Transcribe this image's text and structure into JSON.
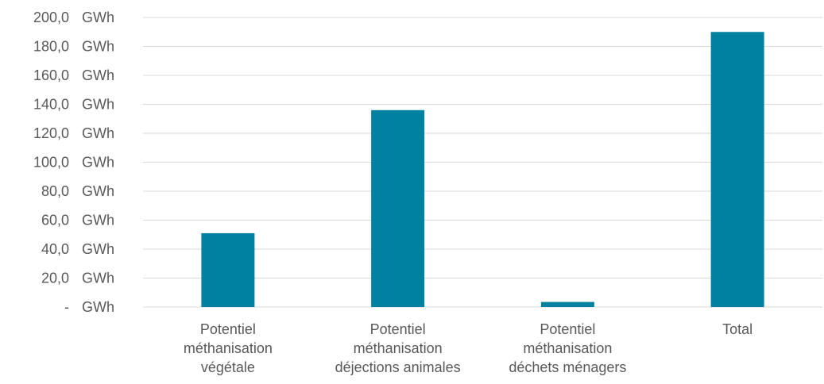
{
  "chart_data": {
    "type": "bar",
    "categories": [
      [
        "Potentiel",
        "méthanisation",
        "végétale"
      ],
      [
        "Potentiel",
        "méthanisation",
        "déjections animales"
      ],
      [
        "Potentiel",
        "méthanisation",
        "déchets ménagers"
      ],
      [
        "Total"
      ]
    ],
    "values": [
      51,
      136,
      3.5,
      190
    ],
    "ylim": [
      0,
      200
    ],
    "yticks": [
      {
        "value": 0,
        "num": "-",
        "unit": "GWh"
      },
      {
        "value": 20,
        "num": "20,0",
        "unit": "GWh"
      },
      {
        "value": 40,
        "num": "40,0",
        "unit": "GWh"
      },
      {
        "value": 60,
        "num": "60,0",
        "unit": "GWh"
      },
      {
        "value": 80,
        "num": "80,0",
        "unit": "GWh"
      },
      {
        "value": 100,
        "num": "100,0",
        "unit": "GWh"
      },
      {
        "value": 120,
        "num": "120,0",
        "unit": "GWh"
      },
      {
        "value": 140,
        "num": "140,0",
        "unit": "GWh"
      },
      {
        "value": 160,
        "num": "160,0",
        "unit": "GWh"
      },
      {
        "value": 180,
        "num": "180,0",
        "unit": "GWh"
      },
      {
        "value": 200,
        "num": "200,0",
        "unit": "GWh"
      }
    ],
    "grid": true,
    "bar_color": "#00819f",
    "title": "",
    "xlabel": "",
    "ylabel": ""
  }
}
